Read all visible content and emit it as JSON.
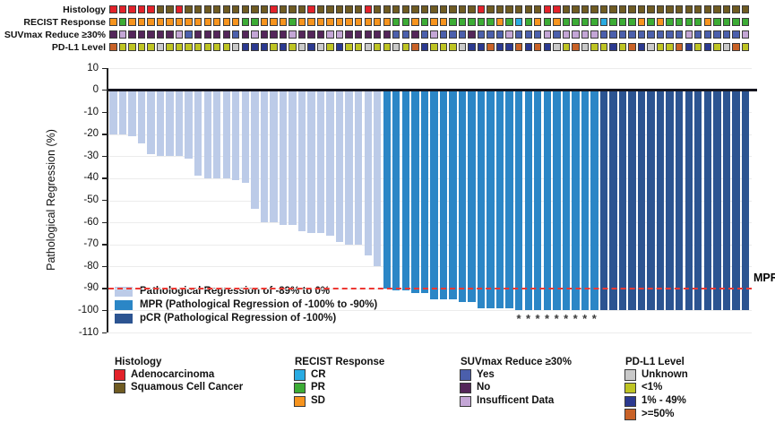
{
  "tracks": {
    "labels": [
      "Histology",
      "RECIST Response",
      "SUVmax Reduce ≥30%",
      "PD-L1 Level"
    ],
    "keys": [
      "h",
      "r",
      "s",
      "p"
    ]
  },
  "colors": {
    "histology": {
      "A": "#E3222A",
      "S": "#6F5B22"
    },
    "recist": {
      "CR": "#29ABE2",
      "PR": "#3CAC35",
      "SD": "#F7941E"
    },
    "suvmax": {
      "Y": "#4B5FAC",
      "N": "#54265A",
      "I": "#C4A6D6"
    },
    "pdl1": {
      "U": "#C9C9C9",
      "<1": "#BEC423",
      "1-49": "#2B3990",
      ">=50": "#C96227"
    },
    "bars": {
      "reg": "#BCCBE8",
      "mpr": "#2B86C6",
      "pcr": "#2C5491"
    },
    "mpr_line": "#ED3833",
    "zero_line": "#15151F",
    "grid": "#ECECEC"
  },
  "chart_data": {
    "type": "bar",
    "title": "",
    "xlabel": "",
    "ylabel": "Pathological Regression (%)",
    "ylim": [
      -110,
      10
    ],
    "yticks": [
      10,
      0,
      -10,
      -20,
      -30,
      -40,
      -50,
      -60,
      -70,
      -80,
      -90,
      -100,
      -110
    ],
    "grid": "faint horizontal",
    "mpr_threshold": -90,
    "mpr_label": "MPR",
    "asterisk_note": "asterisks under columns 44-52",
    "legend_position": "inside lower-left",
    "legend": [
      {
        "key": "reg",
        "label": "Pathological Regression of -89% to 0%"
      },
      {
        "key": "mpr",
        "label": "MPR (Pathological Regression of -100% to -90%)"
      },
      {
        "key": "pcr",
        "label": "pCR (Pathological Regression of -100%)"
      }
    ],
    "code_meanings": {
      "h": {
        "A": "Adenocarcinoma",
        "S": "Squamous Cell Cancer"
      },
      "r": {
        "CR": "CR",
        "PR": "PR",
        "SD": "SD"
      },
      "s": {
        "Y": "Yes",
        "N": "No",
        "I": "Insufficent Data"
      },
      "p": {
        "U": "Unknown",
        "<1": "<1%",
        "1-49": "1% - 49%",
        ">=50": ">=50%"
      }
    },
    "columns": [
      {
        "v": -20,
        "g": "reg",
        "h": "A",
        "r": "SD",
        "s": "N",
        "p": ">=50"
      },
      {
        "v": -20,
        "g": "reg",
        "h": "A",
        "r": "PR",
        "s": "I",
        "p": "<1"
      },
      {
        "v": -21,
        "g": "reg",
        "h": "A",
        "r": "SD",
        "s": "N",
        "p": "<1"
      },
      {
        "v": -24,
        "g": "reg",
        "h": "A",
        "r": "SD",
        "s": "N",
        "p": "<1"
      },
      {
        "v": -29,
        "g": "reg",
        "h": "A",
        "r": "SD",
        "s": "N",
        "p": "<1"
      },
      {
        "v": -30,
        "g": "reg",
        "h": "S",
        "r": "SD",
        "s": "N",
        "p": "U"
      },
      {
        "v": -30,
        "g": "reg",
        "h": "S",
        "r": "SD",
        "s": "N",
        "p": "<1"
      },
      {
        "v": -30,
        "g": "reg",
        "h": "A",
        "r": "SD",
        "s": "I",
        "p": "<1"
      },
      {
        "v": -31,
        "g": "reg",
        "h": "S",
        "r": "SD",
        "s": "Y",
        "p": "<1"
      },
      {
        "v": -39,
        "g": "reg",
        "h": "S",
        "r": "SD",
        "s": "N",
        "p": "<1"
      },
      {
        "v": -40,
        "g": "reg",
        "h": "S",
        "r": "SD",
        "s": "N",
        "p": "<1"
      },
      {
        "v": -40,
        "g": "reg",
        "h": "S",
        "r": "SD",
        "s": "N",
        "p": "<1"
      },
      {
        "v": -40,
        "g": "reg",
        "h": "S",
        "r": "SD",
        "s": "N",
        "p": "<1"
      },
      {
        "v": -41,
        "g": "reg",
        "h": "S",
        "r": "SD",
        "s": "Y",
        "p": "U"
      },
      {
        "v": -42,
        "g": "reg",
        "h": "S",
        "r": "PR",
        "s": "N",
        "p": "1-49"
      },
      {
        "v": -54,
        "g": "reg",
        "h": "S",
        "r": "PR",
        "s": "I",
        "p": "1-49"
      },
      {
        "v": -60,
        "g": "reg",
        "h": "S",
        "r": "SD",
        "s": "N",
        "p": "1-49"
      },
      {
        "v": -60,
        "g": "reg",
        "h": "A",
        "r": "SD",
        "s": "N",
        "p": "<1"
      },
      {
        "v": -61,
        "g": "reg",
        "h": "S",
        "r": "SD",
        "s": "N",
        "p": "1-49"
      },
      {
        "v": -61,
        "g": "reg",
        "h": "S",
        "r": "PR",
        "s": "I",
        "p": "<1"
      },
      {
        "v": -64,
        "g": "reg",
        "h": "S",
        "r": "SD",
        "s": "N",
        "p": "U"
      },
      {
        "v": -65,
        "g": "reg",
        "h": "A",
        "r": "SD",
        "s": "N",
        "p": "1-49"
      },
      {
        "v": -65,
        "g": "reg",
        "h": "S",
        "r": "SD",
        "s": "N",
        "p": "U"
      },
      {
        "v": -66,
        "g": "reg",
        "h": "S",
        "r": "SD",
        "s": "I",
        "p": "<1"
      },
      {
        "v": -69,
        "g": "reg",
        "h": "S",
        "r": "SD",
        "s": "I",
        "p": "1-49"
      },
      {
        "v": -70,
        "g": "reg",
        "h": "S",
        "r": "SD",
        "s": "N",
        "p": "<1"
      },
      {
        "v": -70,
        "g": "reg",
        "h": "S",
        "r": "SD",
        "s": "N",
        "p": "<1"
      },
      {
        "v": -75,
        "g": "reg",
        "h": "A",
        "r": "SD",
        "s": "N",
        "p": "U"
      },
      {
        "v": -80,
        "g": "reg",
        "h": "S",
        "r": "SD",
        "s": "N",
        "p": "<1"
      },
      {
        "v": -90,
        "g": "mpr",
        "h": "S",
        "r": "SD",
        "s": "N",
        "p": "<1"
      },
      {
        "v": -91,
        "g": "mpr",
        "h": "S",
        "r": "PR",
        "s": "Y",
        "p": "U"
      },
      {
        "v": -91,
        "g": "mpr",
        "h": "S",
        "r": "PR",
        "s": "Y",
        "p": "<1"
      },
      {
        "v": -92,
        "g": "mpr",
        "h": "S",
        "r": "SD",
        "s": "N",
        "p": ">=50"
      },
      {
        "v": -92,
        "g": "mpr",
        "h": "S",
        "r": "PR",
        "s": "Y",
        "p": "1-49"
      },
      {
        "v": -95,
        "g": "mpr",
        "h": "S",
        "r": "SD",
        "s": "I",
        "p": "<1"
      },
      {
        "v": -95,
        "g": "mpr",
        "h": "S",
        "r": "SD",
        "s": "Y",
        "p": "<1"
      },
      {
        "v": -95,
        "g": "mpr",
        "h": "S",
        "r": "PR",
        "s": "Y",
        "p": "<1"
      },
      {
        "v": -96,
        "g": "mpr",
        "h": "S",
        "r": "PR",
        "s": "Y",
        "p": "U"
      },
      {
        "v": -96,
        "g": "mpr",
        "h": "S",
        "r": "PR",
        "s": "N",
        "p": "1-49"
      },
      {
        "v": -99,
        "g": "mpr",
        "h": "A",
        "r": "PR",
        "s": "Y",
        "p": "1-49"
      },
      {
        "v": -99,
        "g": "mpr",
        "h": "S",
        "r": "PR",
        "s": "Y",
        "p": ">=50"
      },
      {
        "v": -99,
        "g": "mpr",
        "h": "S",
        "r": "SD",
        "s": "Y",
        "p": "1-49"
      },
      {
        "v": -99,
        "g": "mpr",
        "h": "S",
        "r": "PR",
        "s": "I",
        "p": "1-49"
      },
      {
        "v": -100,
        "g": "mpr",
        "a": 1,
        "h": "S",
        "r": "CR",
        "s": "Y",
        "p": ">=50"
      },
      {
        "v": -100,
        "g": "mpr",
        "a": 1,
        "h": "S",
        "r": "PR",
        "s": "Y",
        "p": "1-49"
      },
      {
        "v": -100,
        "g": "mpr",
        "a": 1,
        "h": "S",
        "r": "SD",
        "s": "Y",
        "p": ">=50"
      },
      {
        "v": -100,
        "g": "mpr",
        "a": 1,
        "h": "A",
        "r": "PR",
        "s": "I",
        "p": "1-49"
      },
      {
        "v": -100,
        "g": "mpr",
        "a": 1,
        "h": "A",
        "r": "SD",
        "s": "Y",
        "p": "U"
      },
      {
        "v": -100,
        "g": "mpr",
        "a": 1,
        "h": "S",
        "r": "PR",
        "s": "I",
        "p": "<1"
      },
      {
        "v": -100,
        "g": "mpr",
        "a": 1,
        "h": "S",
        "r": "PR",
        "s": "I",
        "p": ">=50"
      },
      {
        "v": -100,
        "g": "mpr",
        "a": 1,
        "h": "S",
        "r": "PR",
        "s": "I",
        "p": "U"
      },
      {
        "v": -100,
        "g": "mpr",
        "a": 1,
        "h": "S",
        "r": "PR",
        "s": "I",
        "p": "<1"
      },
      {
        "v": -100,
        "g": "pcr",
        "h": "S",
        "r": "CR",
        "s": "Y",
        "p": "<1"
      },
      {
        "v": -100,
        "g": "pcr",
        "h": "S",
        "r": "PR",
        "s": "Y",
        "p": "1-49"
      },
      {
        "v": -100,
        "g": "pcr",
        "h": "S",
        "r": "PR",
        "s": "Y",
        "p": "<1"
      },
      {
        "v": -100,
        "g": "pcr",
        "h": "S",
        "r": "PR",
        "s": "Y",
        "p": ">=50"
      },
      {
        "v": -100,
        "g": "pcr",
        "h": "S",
        "r": "SD",
        "s": "Y",
        "p": "1-49"
      },
      {
        "v": -100,
        "g": "pcr",
        "h": "S",
        "r": "PR",
        "s": "Y",
        "p": "U"
      },
      {
        "v": -100,
        "g": "pcr",
        "h": "S",
        "r": "SD",
        "s": "Y",
        "p": "<1"
      },
      {
        "v": -100,
        "g": "pcr",
        "h": "S",
        "r": "PR",
        "s": "Y",
        "p": "<1"
      },
      {
        "v": -100,
        "g": "pcr",
        "h": "S",
        "r": "PR",
        "s": "Y",
        "p": ">=50"
      },
      {
        "v": -100,
        "g": "pcr",
        "h": "S",
        "r": "PR",
        "s": "I",
        "p": "1-49"
      },
      {
        "v": -100,
        "g": "pcr",
        "h": "S",
        "r": "PR",
        "s": "Y",
        "p": "<1"
      },
      {
        "v": -100,
        "g": "pcr",
        "h": "S",
        "r": "SD",
        "s": "Y",
        "p": "1-49"
      },
      {
        "v": -100,
        "g": "pcr",
        "h": "S",
        "r": "PR",
        "s": "Y",
        "p": "<1"
      },
      {
        "v": -100,
        "g": "pcr",
        "h": "S",
        "r": "PR",
        "s": "Y",
        "p": "U"
      },
      {
        "v": -100,
        "g": "pcr",
        "h": "S",
        "r": "PR",
        "s": "Y",
        "p": ">=50"
      },
      {
        "v": -100,
        "g": "pcr",
        "h": "S",
        "r": "PR",
        "s": "I",
        "p": "<1"
      }
    ]
  },
  "bottom_legend": [
    {
      "title": "Histology",
      "items": [
        {
          "label": "Adenocarcinoma",
          "key": "A",
          "color": "#E3222A"
        },
        {
          "label": "Squamous Cell Cancer",
          "key": "S",
          "color": "#6F5B22"
        }
      ]
    },
    {
      "title": "RECIST Response",
      "items": [
        {
          "label": "CR",
          "key": "CR",
          "color": "#29ABE2"
        },
        {
          "label": "PR",
          "key": "PR",
          "color": "#3CAC35"
        },
        {
          "label": "SD",
          "key": "SD",
          "color": "#F7941E"
        }
      ]
    },
    {
      "title": "SUVmax Reduce ≥30%",
      "items": [
        {
          "label": "Yes",
          "key": "Y",
          "color": "#4B5FAC"
        },
        {
          "label": "No",
          "key": "N",
          "color": "#54265A"
        },
        {
          "label": "Insufficent Data",
          "key": "I",
          "color": "#C4A6D6"
        }
      ]
    },
    {
      "title": "PD-L1 Level",
      "items": [
        {
          "label": "Unknown",
          "key": "U",
          "color": "#C9C9C9"
        },
        {
          "label": "<1%",
          "key": "<1",
          "color": "#BEC423"
        },
        {
          "label": "1% - 49%",
          "key": "1-49",
          "color": "#2B3990"
        },
        {
          "label": ">=50%",
          "key": ">=50",
          "color": "#C96227"
        }
      ]
    }
  ]
}
